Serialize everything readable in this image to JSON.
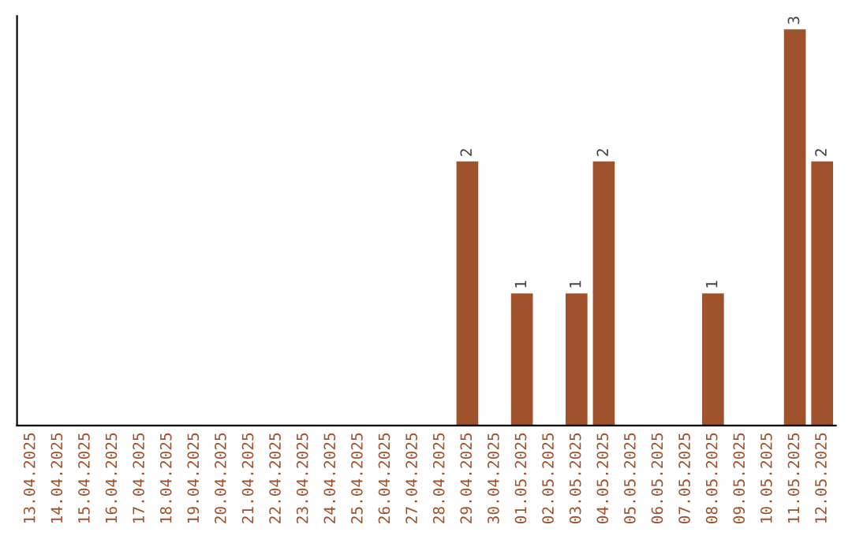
{
  "chart_data": {
    "type": "bar",
    "categories": [
      "13.04.2025",
      "14.04.2025",
      "15.04.2025",
      "16.04.2025",
      "17.04.2025",
      "18.04.2025",
      "19.04.2025",
      "20.04.2025",
      "21.04.2025",
      "22.04.2025",
      "23.04.2025",
      "24.04.2025",
      "25.04.2025",
      "26.04.2025",
      "27.04.2025",
      "28.04.2025",
      "29.04.2025",
      "30.04.2025",
      "01.05.2025",
      "02.05.2025",
      "03.05.2025",
      "04.05.2025",
      "05.05.2025",
      "06.05.2025",
      "07.05.2025",
      "08.05.2025",
      "09.05.2025",
      "10.05.2025",
      "11.05.2025",
      "12.05.2025"
    ],
    "values": [
      null,
      null,
      null,
      null,
      null,
      null,
      null,
      null,
      null,
      null,
      null,
      null,
      null,
      null,
      null,
      null,
      2,
      null,
      1,
      null,
      1,
      2,
      null,
      null,
      null,
      1,
      null,
      null,
      3,
      2
    ],
    "data_labels": true,
    "color": "#a0522d",
    "ylim": [
      0,
      3.1
    ],
    "grid": false,
    "legend": false
  }
}
